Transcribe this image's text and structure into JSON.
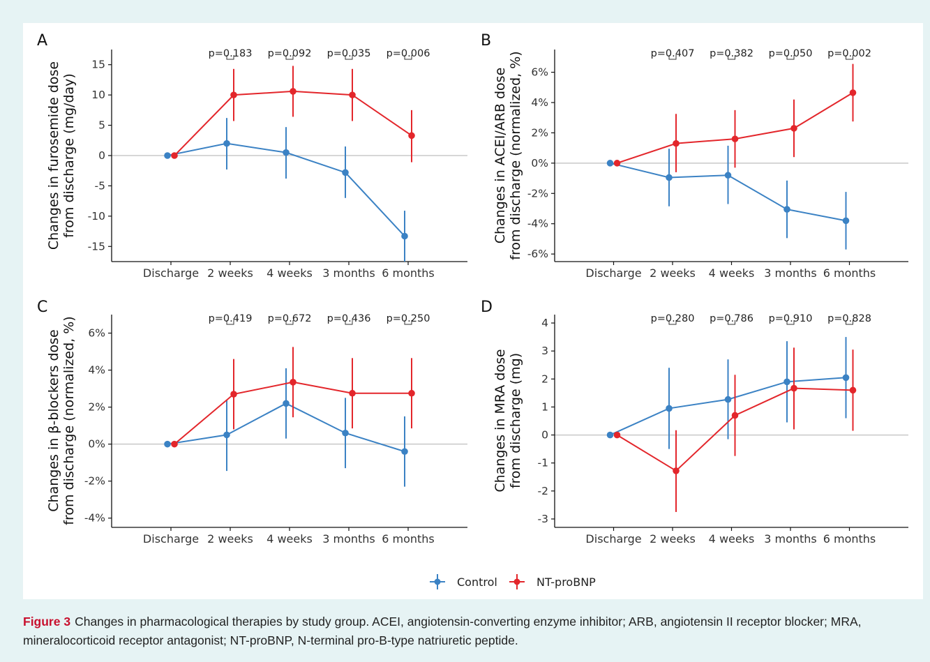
{
  "caption": {
    "label": "Figure 3",
    "text": "Changes in pharmacological therapies by study group. ACEI, angiotensin-converting enzyme inhibitor; ARB, angiotensin II receptor blocker; MRA, mineralocorticoid receptor antagonist; NT-proBNP, N-terminal pro-B-type natriuretic peptide."
  },
  "legend": {
    "position": "bottom-center",
    "items": [
      {
        "name": "Control",
        "color": "#3b82c4"
      },
      {
        "name": "NT-proBNP",
        "color": "#e3262b"
      }
    ]
  },
  "colors": {
    "control": "#3b82c4",
    "ntprobnp": "#e3262b",
    "zero_line": "#c8c8c8"
  },
  "chart_data": [
    {
      "panel": "A",
      "type": "line",
      "ylabel": [
        "Changes in furosemide dose",
        "from discharge (mg/day)"
      ],
      "categories": [
        "Discharge",
        "2 weeks",
        "4 weeks",
        "3 months",
        "6 months"
      ],
      "ylim": [
        -17.5,
        17.5
      ],
      "yticks": [
        -15,
        -10,
        -5,
        0,
        5,
        10,
        15
      ],
      "ytick_labels": [
        "-15",
        "-10",
        "-5",
        "0",
        "5",
        "10",
        "15"
      ],
      "p_values": [
        "p=0.183",
        "p=0.092",
        "p=0.035",
        "p=0.006"
      ],
      "series": [
        {
          "name": "Control",
          "values": [
            0,
            2.0,
            0.5,
            -2.8,
            -13.3
          ],
          "lower": [
            0,
            -2.3,
            -3.8,
            -7.0,
            -17.5
          ],
          "upper": [
            0,
            6.2,
            4.7,
            1.5,
            -9.1
          ]
        },
        {
          "name": "NT-proBNP",
          "values": [
            0,
            10.0,
            10.6,
            10.0,
            3.3
          ],
          "lower": [
            0,
            5.7,
            6.4,
            5.7,
            -1.1
          ],
          "upper": [
            0,
            14.3,
            14.8,
            14.3,
            7.5
          ]
        }
      ]
    },
    {
      "panel": "B",
      "type": "line",
      "ylabel": [
        "Changes in ACEI/ARB dose",
        "from discharge (normalized, %)"
      ],
      "categories": [
        "Discharge",
        "2 weeks",
        "4 weeks",
        "3 months",
        "6 months"
      ],
      "ylim": [
        -6.5,
        7.5
      ],
      "yticks": [
        -6,
        -4,
        -2,
        0,
        2,
        4,
        6
      ],
      "ytick_labels": [
        "-6%",
        "-4%",
        "-2%",
        "0%",
        "2%",
        "4%",
        "6%"
      ],
      "p_values": [
        "p=0.407",
        "p=0.382",
        "p=0.050",
        "p=0.002"
      ],
      "series": [
        {
          "name": "Control",
          "values": [
            0,
            -0.95,
            -0.8,
            -3.05,
            -3.8
          ],
          "lower": [
            0,
            -2.85,
            -2.7,
            -4.95,
            -5.7
          ],
          "upper": [
            0,
            0.95,
            1.15,
            -1.15,
            -1.9
          ]
        },
        {
          "name": "NT-proBNP",
          "values": [
            0,
            1.3,
            1.6,
            2.3,
            4.65
          ],
          "lower": [
            0,
            -0.6,
            -0.3,
            0.4,
            2.75
          ],
          "upper": [
            0,
            3.25,
            3.5,
            4.2,
            6.55
          ]
        }
      ]
    },
    {
      "panel": "C",
      "type": "line",
      "ylabel": [
        "Changes in β-blockers dose",
        "from discharge (normalized, %)"
      ],
      "categories": [
        "Discharge",
        "2 weeks",
        "4 weeks",
        "3 months",
        "6 months"
      ],
      "ylim": [
        -4.5,
        7.0
      ],
      "yticks": [
        -4,
        -2,
        0,
        2,
        4,
        6
      ],
      "ytick_labels": [
        "-4%",
        "-2%",
        "0%",
        "2%",
        "4%",
        "6%"
      ],
      "p_values": [
        "p=0.419",
        "p=0.672",
        "p=0.436",
        "p=0.250"
      ],
      "series": [
        {
          "name": "Control",
          "values": [
            0,
            0.5,
            2.2,
            0.6,
            -0.4
          ],
          "lower": [
            0,
            -1.45,
            0.3,
            -1.3,
            -2.3
          ],
          "upper": [
            0,
            2.4,
            4.1,
            2.5,
            1.5
          ]
        },
        {
          "name": "NT-proBNP",
          "values": [
            0,
            2.7,
            3.35,
            2.75,
            2.75
          ],
          "lower": [
            0,
            0.8,
            1.45,
            0.85,
            0.85
          ],
          "upper": [
            0,
            4.6,
            5.25,
            4.65,
            4.65
          ]
        }
      ]
    },
    {
      "panel": "D",
      "type": "line",
      "ylabel": [
        "Changes in MRA dose",
        "from discharge (mg)"
      ],
      "categories": [
        "Discharge",
        "2 weeks",
        "4 weeks",
        "3 months",
        "6 months"
      ],
      "ylim": [
        -3.3,
        4.3
      ],
      "yticks": [
        -3,
        -2,
        -1,
        0,
        1,
        2,
        3,
        4
      ],
      "ytick_labels": [
        "-3",
        "-2",
        "-1",
        "0",
        "1",
        "2",
        "3",
        "4"
      ],
      "p_values": [
        "p=0.280",
        "p=0.786",
        "p=0.910",
        "p=0.828"
      ],
      "series": [
        {
          "name": "Control",
          "values": [
            0,
            0.95,
            1.27,
            1.9,
            2.05
          ],
          "lower": [
            0,
            -0.5,
            -0.15,
            0.45,
            0.6
          ],
          "upper": [
            0,
            2.4,
            2.7,
            3.35,
            3.5
          ]
        },
        {
          "name": "NT-proBNP",
          "values": [
            0,
            -1.28,
            0.7,
            1.67,
            1.6
          ],
          "lower": [
            0,
            -2.75,
            -0.75,
            0.2,
            0.15
          ],
          "upper": [
            0,
            0.17,
            2.15,
            3.12,
            3.05
          ]
        }
      ]
    }
  ]
}
